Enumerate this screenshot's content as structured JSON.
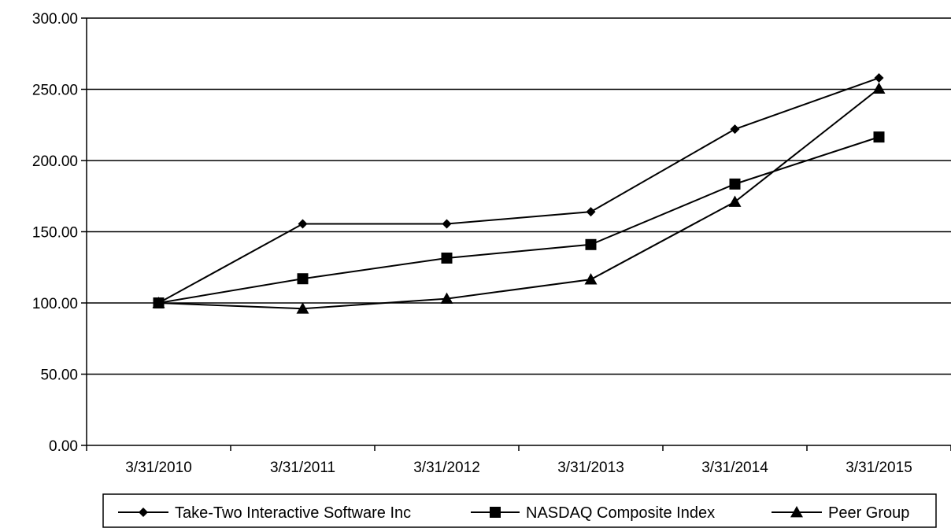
{
  "chart_data": {
    "type": "line",
    "title": "",
    "xlabel": "",
    "ylabel": "",
    "categories": [
      "3/31/2010",
      "3/31/2011",
      "3/31/2012",
      "3/31/2013",
      "3/31/2014",
      "3/31/2015"
    ],
    "ylim": [
      0,
      300
    ],
    "yticks": [
      "0.00",
      "50.00",
      "100.00",
      "150.00",
      "200.00",
      "250.00",
      "300.00"
    ],
    "grid": "horizontal",
    "legend_position": "bottom",
    "series": [
      {
        "name": "Take-Two Interactive Software Inc",
        "marker": "diamond",
        "values": [
          100,
          155.5,
          155.5,
          164,
          222,
          258
        ]
      },
      {
        "name": "NASDAQ Composite Index",
        "marker": "square",
        "values": [
          100,
          117,
          131.5,
          141,
          183.5,
          216.5
        ]
      },
      {
        "name": "Peer Group",
        "marker": "triangle",
        "values": [
          100,
          96,
          103,
          116.5,
          171,
          250.5
        ]
      }
    ],
    "colors": {
      "line": "#000000",
      "grid": "#000000"
    }
  }
}
